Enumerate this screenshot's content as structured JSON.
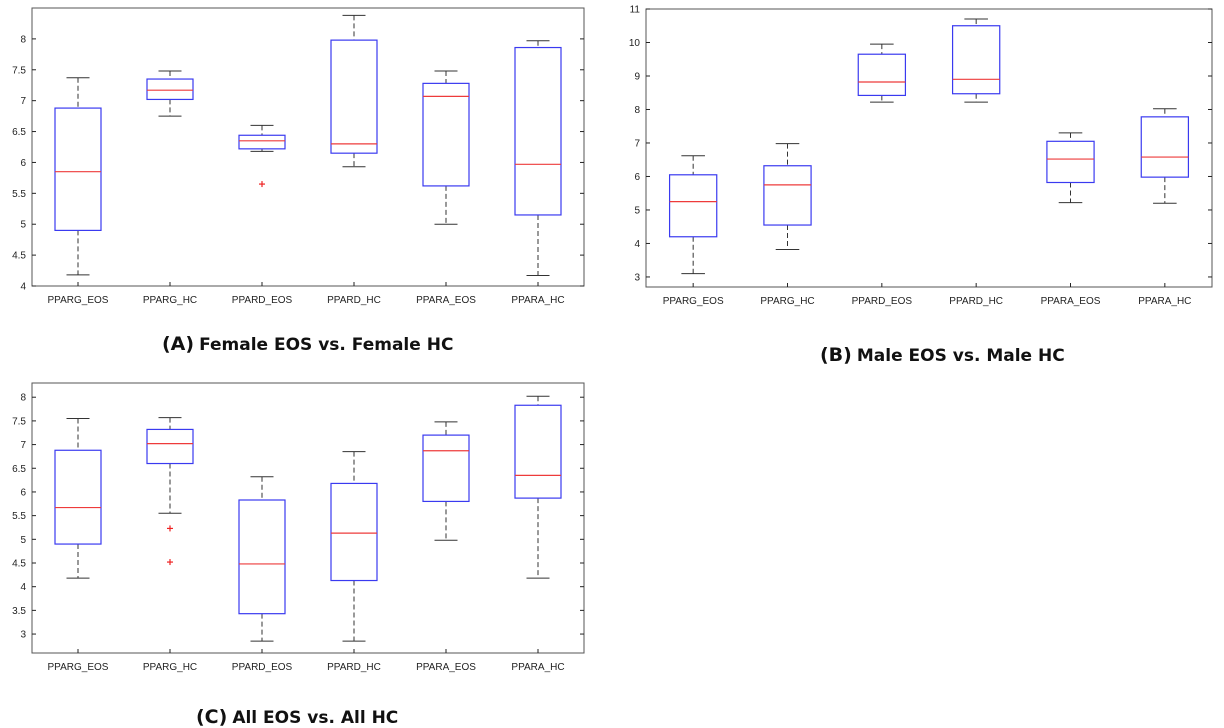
{
  "captions": [
    {
      "label": "(A)",
      "text": "Female EOS vs. Female HC"
    },
    {
      "label": "(B)",
      "text": "Male EOS vs. Male HC"
    },
    {
      "label": "(C)",
      "text": "All EOS vs. All HC"
    }
  ],
  "colors": {
    "box": "#3a3af0",
    "median": "#ee3b3b",
    "whisker": "#333333",
    "outlier": "#ee2222",
    "axis": "#222222",
    "frame": "#555555"
  },
  "chart_data": [
    {
      "type": "box",
      "panel": "A",
      "title": "",
      "categories": [
        "PPARG_EOS",
        "PPARG_HC",
        "PPARD_EOS",
        "PPARD_HC",
        "PPARA_EOS",
        "PPARA_HC"
      ],
      "ylim": [
        4,
        8.5
      ],
      "yticks": [
        "4",
        "4.5",
        "5",
        "5.5",
        "6",
        "6.5",
        "7",
        "7.5",
        "8"
      ],
      "boxes": [
        {
          "min": 4.18,
          "q1": 4.9,
          "median": 5.85,
          "q3": 6.88,
          "max": 7.37,
          "outliers": []
        },
        {
          "min": 6.75,
          "q1": 7.02,
          "median": 7.17,
          "q3": 7.35,
          "max": 7.48,
          "outliers": []
        },
        {
          "min": 6.18,
          "q1": 6.22,
          "median": 6.35,
          "q3": 6.44,
          "max": 6.6,
          "outliers": [
            5.65
          ]
        },
        {
          "min": 5.93,
          "q1": 6.15,
          "median": 6.3,
          "q3": 7.98,
          "max": 8.38,
          "outliers": []
        },
        {
          "min": 5.0,
          "q1": 5.62,
          "median": 7.07,
          "q3": 7.28,
          "max": 7.48,
          "outliers": []
        },
        {
          "min": 4.17,
          "q1": 5.15,
          "median": 5.97,
          "q3": 7.86,
          "max": 7.97,
          "outliers": []
        }
      ]
    },
    {
      "type": "box",
      "panel": "B",
      "title": "",
      "categories": [
        "PPARG_EOS",
        "PPARG_HC",
        "PPARD_EOS",
        "PPARD_HC",
        "PPARA_EOS",
        "PPARA_HC"
      ],
      "ylim": [
        2.7,
        11
      ],
      "yticks": [
        "3",
        "4",
        "5",
        "6",
        "7",
        "8",
        "9",
        "10",
        "11"
      ],
      "boxes": [
        {
          "min": 3.1,
          "q1": 4.2,
          "median": 5.25,
          "q3": 6.05,
          "max": 6.62,
          "outliers": []
        },
        {
          "min": 3.82,
          "q1": 4.55,
          "median": 5.75,
          "q3": 6.32,
          "max": 6.98,
          "outliers": []
        },
        {
          "min": 8.22,
          "q1": 8.42,
          "median": 8.82,
          "q3": 9.65,
          "max": 9.95,
          "outliers": []
        },
        {
          "min": 8.22,
          "q1": 8.47,
          "median": 8.9,
          "q3": 10.5,
          "max": 10.7,
          "outliers": []
        },
        {
          "min": 5.22,
          "q1": 5.82,
          "median": 6.52,
          "q3": 7.05,
          "max": 7.3,
          "outliers": []
        },
        {
          "min": 5.2,
          "q1": 5.98,
          "median": 6.58,
          "q3": 7.78,
          "max": 8.02,
          "outliers": []
        }
      ]
    },
    {
      "type": "box",
      "panel": "C",
      "title": "",
      "categories": [
        "PPARG_EOS",
        "PPARG_HC",
        "PPARD_EOS",
        "PPARD_HC",
        "PPARA_EOS",
        "PPARA_HC"
      ],
      "ylim": [
        2.6,
        8.3
      ],
      "yticks": [
        "3",
        "3.5",
        "4",
        "4.5",
        "5",
        "5.5",
        "6",
        "6.5",
        "7",
        "7.5",
        "8"
      ],
      "boxes": [
        {
          "min": 4.18,
          "q1": 4.9,
          "median": 5.67,
          "q3": 6.88,
          "max": 7.55,
          "outliers": []
        },
        {
          "min": 5.55,
          "q1": 6.6,
          "median": 7.02,
          "q3": 7.32,
          "max": 7.57,
          "outliers": [
            5.23,
            4.52
          ]
        },
        {
          "min": 2.85,
          "q1": 3.43,
          "median": 4.48,
          "q3": 5.83,
          "max": 6.32,
          "outliers": []
        },
        {
          "min": 2.85,
          "q1": 4.13,
          "median": 5.13,
          "q3": 6.18,
          "max": 6.85,
          "outliers": []
        },
        {
          "min": 4.98,
          "q1": 5.8,
          "median": 6.87,
          "q3": 7.2,
          "max": 7.48,
          "outliers": []
        },
        {
          "min": 4.18,
          "q1": 5.87,
          "median": 6.35,
          "q3": 7.83,
          "max": 8.02,
          "outliers": []
        }
      ]
    }
  ]
}
